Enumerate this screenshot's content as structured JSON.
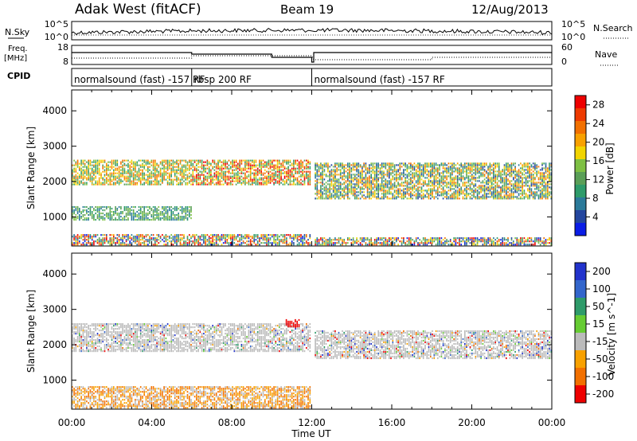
{
  "header": {
    "station": "Adak West (fitACF)",
    "beam": "Beam 19",
    "date": "12/Aug/2013"
  },
  "left_labels": {
    "nsky": "N.Sky",
    "freq_line1": "Freq.",
    "freq_line2": "[MHz]",
    "cpid": "CPID"
  },
  "right_labels": {
    "nsearch": "N.Search",
    "nave": "Nave"
  },
  "noise_axis": {
    "left_ticks": [
      "10^5",
      "10^0"
    ],
    "right_ticks": [
      "10^5",
      "10^0"
    ]
  },
  "freq_axis": {
    "left_ticks": [
      "18",
      "8"
    ],
    "right_ticks": [
      "60",
      "0"
    ]
  },
  "cpid_segments": [
    {
      "label": "normalsound (fast) -157 RF",
      "start_hour": 0,
      "end_hour": 6
    },
    {
      "label": "rbsp 200 RF",
      "start_hour": 6,
      "end_hour": 12
    },
    {
      "label": "normalsound (fast) -157 RF",
      "start_hour": 12,
      "end_hour": 24
    }
  ],
  "chart_data": [
    {
      "type": "heatmap",
      "title": "",
      "xlabel": "Time UT",
      "ylabel": "Slant Range [km]",
      "x_ticks": [
        "00:00",
        "04:00",
        "08:00",
        "12:00",
        "16:00",
        "20:00",
        "00:00"
      ],
      "xlim_hours": [
        0,
        24
      ],
      "y_ticks": [
        1000,
        2000,
        3000,
        4000
      ],
      "ylim": [
        180,
        4590
      ],
      "colorbar": {
        "label": "Power [dB]",
        "ticks": [
          4,
          8,
          12,
          16,
          20,
          24,
          28
        ],
        "range": [
          0,
          30
        ],
        "colors": [
          "#0a1de6",
          "#23469e",
          "#2b7a9a",
          "#2e9b6a",
          "#5a9f57",
          "#7ec043",
          "#f2d400",
          "#f8a100",
          "#f27000",
          "#ee3a00",
          "#ee0000"
        ]
      },
      "data_gap_hours": [
        11.9,
        12.1
      ],
      "features": [
        {
          "name": "main band",
          "start_hour": 0,
          "end_hour": 12,
          "range_km": [
            1900,
            2600
          ],
          "peak_power_db": 28
        },
        {
          "name": "lower band",
          "start_hour": 0,
          "end_hour": 6,
          "range_km": [
            900,
            1300
          ],
          "peak_power_db": 14
        },
        {
          "name": "afternoon band",
          "start_hour": 12,
          "end_hour": 24,
          "range_km": [
            1500,
            2500
          ],
          "peak_power_db": 24
        }
      ]
    },
    {
      "type": "heatmap",
      "title": "",
      "xlabel": "Time UT",
      "ylabel": "Slant Range [km]",
      "x_ticks": [
        "00:00",
        "04:00",
        "08:00",
        "12:00",
        "16:00",
        "20:00",
        "00:00"
      ],
      "xlim_hours": [
        0,
        24
      ],
      "y_ticks": [
        1000,
        2000,
        3000,
        4000
      ],
      "ylim": [
        180,
        4590
      ],
      "colorbar": {
        "label": "Velocity [m s^-1]",
        "ticks": [
          200,
          100,
          50,
          15,
          -15,
          -50,
          -100,
          -200
        ],
        "range": [
          -250,
          250
        ],
        "colors": [
          "#2233cc",
          "#3366cc",
          "#2e9b6a",
          "#66cc33",
          "#bbbbbb",
          "#f8a100",
          "#f27000",
          "#ee0000"
        ]
      },
      "data_gap_hours": [
        11.9,
        12.1
      ],
      "features": [
        {
          "name": "ground scatter",
          "start_hour": 0,
          "end_hour": 24,
          "range_km": [
            1800,
            2600
          ],
          "velocity_ms": 0
        },
        {
          "name": "red patch",
          "hour": 11,
          "range_km": [
            2500,
            2700
          ],
          "velocity_ms": -200
        }
      ]
    }
  ]
}
